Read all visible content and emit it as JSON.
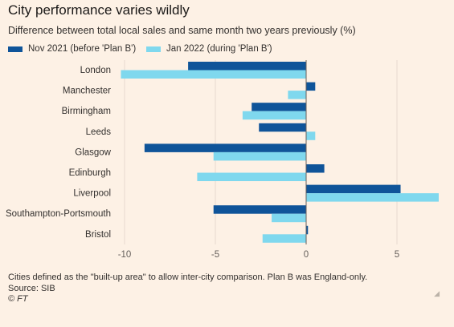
{
  "title": "City performance varies wildly",
  "subtitle": "Difference between total local sales and same month two years previously (%)",
  "colors": {
    "background": "#fdf1e5",
    "nov2021": "#0f5499",
    "jan2022": "#7fd8ee",
    "zero_line": "#66605c",
    "grid": "#e6d9ce"
  },
  "chart_data": {
    "type": "bar",
    "orientation": "horizontal",
    "categories": [
      "London",
      "Manchester",
      "Birmingham",
      "Leeds",
      "Glasgow",
      "Edinburgh",
      "Liverpool",
      "Southampton-Portsmouth",
      "Bristol"
    ],
    "series": [
      {
        "name": "Nov 2021 (before 'Plan B')",
        "values": [
          -6.5,
          0.5,
          -3.0,
          -2.6,
          -8.9,
          1.0,
          5.2,
          -5.1,
          0.1
        ]
      },
      {
        "name": "Jan 2022 (during 'Plan B')",
        "values": [
          -10.2,
          -1.0,
          -3.5,
          0.5,
          -5.1,
          -6.0,
          7.3,
          -1.9,
          -2.4
        ]
      }
    ],
    "xlim": [
      -10.5,
      7.5
    ],
    "xticks": [
      -10,
      -5,
      0,
      5
    ],
    "xtick_labels": [
      "-10",
      "-5",
      "0",
      "5"
    ],
    "grid": true,
    "legend_position": "top-left"
  },
  "footnote": {
    "note": "Cities defined as the \"built-up area\" to allow inter-city comparison. Plan B was England-only.",
    "source": "Source: SIB",
    "copyright": "© FT"
  },
  "corner_icon": "resize-grip-icon"
}
